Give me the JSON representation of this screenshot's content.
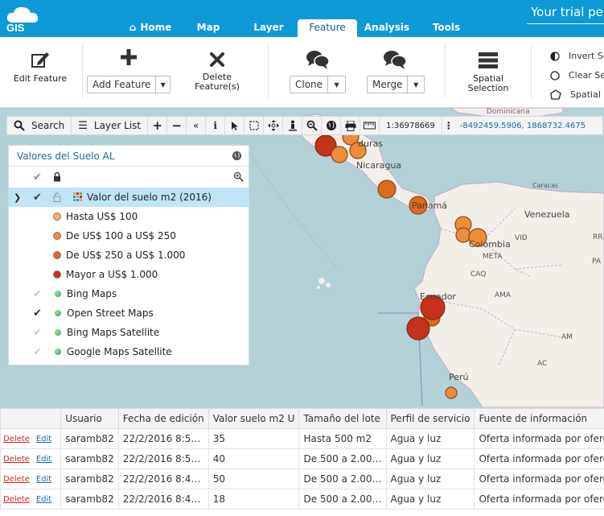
{
  "header": {
    "logo_text": "GIS",
    "trial_text": "Your trial perio",
    "tabs": [
      {
        "label": "Home",
        "icon": "home-icon",
        "active": false
      },
      {
        "label": "Map",
        "active": false
      },
      {
        "label": "Layer",
        "active": false
      },
      {
        "label": "Feature",
        "active": true
      },
      {
        "label": "Analysis",
        "active": false
      },
      {
        "label": "Tools",
        "active": false
      }
    ]
  },
  "ribbon": {
    "edit_feature": "Edit Feature",
    "add_feature": "Add Feature",
    "delete_feature_line1": "Delete",
    "delete_feature_line2": "Feature(s)",
    "clone": "Clone",
    "merge": "Merge",
    "spatial_selection_line1": "Spatial",
    "spatial_selection_line2": "Selection",
    "invert_selection": "Invert Sel",
    "clear_selection": "Clear Sel",
    "spatial_filter": "Spatial Fi"
  },
  "map_toolbar": {
    "search": "Search",
    "layer_list": "Layer List",
    "scale": "1:36978669",
    "coordinates": "-8492459.5906, 1868732.4675"
  },
  "map_labels": {
    "dominicana": "Dominicana",
    "honduras": "duras",
    "nicaragua": "Nicaragua",
    "caracas": "Caracas",
    "panama": "Panamá",
    "venezuela": "Venezuela",
    "colombia": "Colombia",
    "vid": "VID",
    "meta": "META",
    "caq": "CAQ",
    "ama": "AMA",
    "pa": "PA",
    "ecuador": "Ecuador",
    "peru": "Perú",
    "rr": "RR",
    "am": "AM",
    "ac": "AC"
  },
  "layer_panel": {
    "title": "Valores del Suelo AL",
    "group_layer": "Valor del suelo m2 (2016)",
    "legend": [
      {
        "label": "Hasta US$ 100",
        "color": "#f4b068"
      },
      {
        "label": "De US$ 100 a US$ 250",
        "color": "#ec8d3a"
      },
      {
        "label": "De US$ 250 a US$ 1.000",
        "color": "#dc6a1f"
      },
      {
        "label": "Mayor a US$ 1.000",
        "color": "#c5321a"
      }
    ],
    "basemaps": [
      {
        "label": "Bing Maps",
        "checked": false
      },
      {
        "label": "Open Street Maps",
        "checked": true
      },
      {
        "label": "Bing Maps Satellite",
        "checked": false
      },
      {
        "label": "Google Maps Satellite",
        "checked": false
      }
    ]
  },
  "table": {
    "columns": [
      "Usuario",
      "Fecha de edición",
      "Valor suelo m2 U",
      "Tamaño del lote",
      "Perfil de servicio",
      "Fuente de información"
    ],
    "delete_label": "Delete",
    "edit_label": "Edit",
    "rows": [
      [
        "saramb82",
        "22/2/2016 8:5…",
        "35",
        "Hasta 500 m2",
        "Agua y luz",
        "Oferta informada por oferente"
      ],
      [
        "saramb82",
        "22/2/2016 8:5…",
        "40",
        "De 500 a 2.00…",
        "Agua y luz",
        "Oferta informada por oferente"
      ],
      [
        "saramb82",
        "22/2/2016 8:4…",
        "50",
        "De 500 a 2.00…",
        "Agua y luz",
        "Oferta informada por oferente"
      ],
      [
        "saramb82",
        "22/2/2016 8:4…",
        "18",
        "De 500 a 2.00…",
        "Agua y luz",
        "Oferta informada por oferente"
      ]
    ]
  },
  "colors": {
    "brand_blue": "#0e9ad6",
    "sea": "#b3d1d7",
    "land": "#f2efe9",
    "selected_row": "#bfe4f7"
  }
}
